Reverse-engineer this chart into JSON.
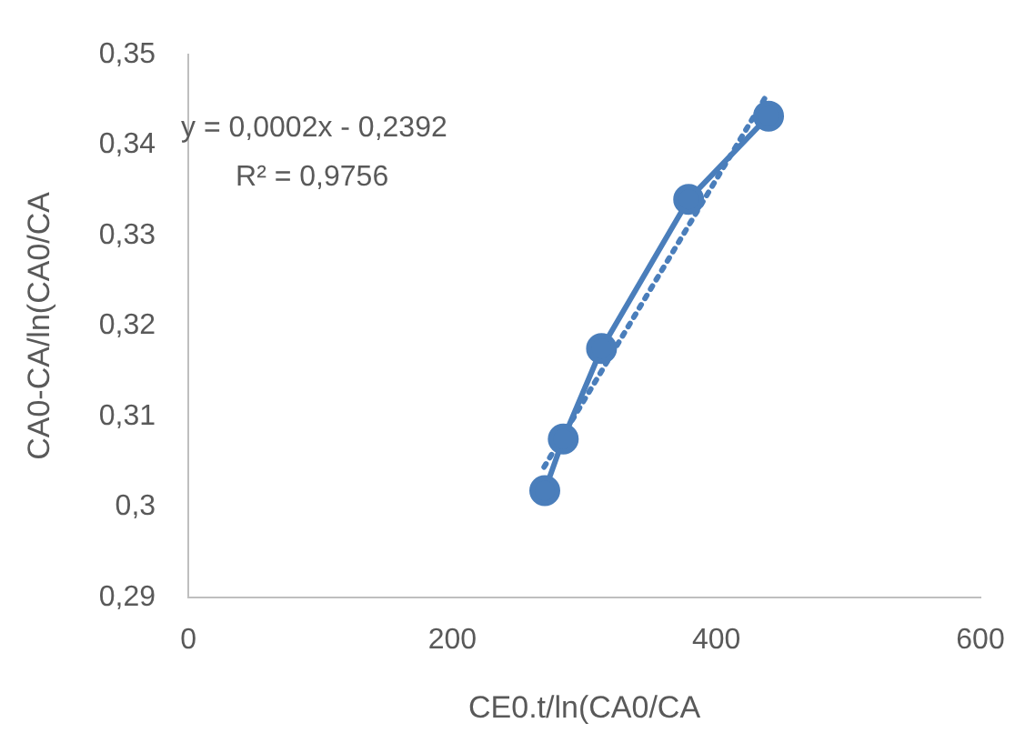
{
  "chart_data": {
    "type": "line",
    "xlabel": "CE0.t/ln(CA0/CA",
    "ylabel": "CA0-CA/ln(CA0/CA",
    "xlim": [
      0,
      600
    ],
    "xticks": [
      0,
      200,
      400,
      600
    ],
    "ylim": [
      0.29,
      0.35
    ],
    "yticks": [
      {
        "value": 0.29,
        "label": "0,29"
      },
      {
        "value": 0.3,
        "label": "0,3"
      },
      {
        "value": 0.31,
        "label": "0,31"
      },
      {
        "value": 0.32,
        "label": "0,32"
      },
      {
        "value": 0.33,
        "label": "0,33"
      },
      {
        "value": 0.34,
        "label": "0,34"
      },
      {
        "value": 0.35,
        "label": "0,35"
      }
    ],
    "grid": false,
    "legend": false,
    "series": [
      {
        "color": "#4a7ebb",
        "x": [
          270,
          284,
          313,
          379,
          439.5
        ],
        "values": [
          0.3018,
          0.3075,
          0.3175,
          0.334,
          0.3432
        ],
        "marker": "circle",
        "line_style": "solid"
      },
      {
        "type": "line",
        "color": "#4a7ebb",
        "x": [
          269.5,
          438
        ],
        "values": [
          0.3044,
          0.3455
        ],
        "marker": "none",
        "line_style": "dotted"
      }
    ],
    "annotations": [
      "y = 0,0002x - 0,2392",
      "R² = 0,9756"
    ]
  }
}
